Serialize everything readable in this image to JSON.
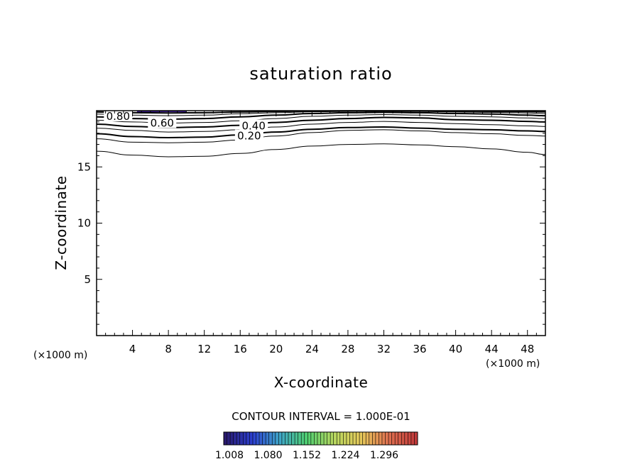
{
  "chart_data": {
    "type": "contour",
    "title": "saturation ratio",
    "xlabel": "X-coordinate",
    "ylabel": "Z-coordinate",
    "x_unit": "(×1000 m)",
    "x_unit_right": "(×1000 m)",
    "xlim": [
      0,
      50
    ],
    "ylim": [
      0,
      20
    ],
    "x_ticks": [
      4,
      8,
      12,
      16,
      20,
      24,
      28,
      32,
      36,
      40,
      44,
      48
    ],
    "y_ticks": [
      5,
      10,
      15
    ],
    "contour_interval_text": "CONTOUR INTERVAL = 1.000E-01",
    "contours": [
      {
        "level": 0.0,
        "label": "",
        "points": [
          [
            0,
            16.4
          ],
          [
            4,
            16.05
          ],
          [
            8,
            15.9
          ],
          [
            12,
            15.95
          ],
          [
            16,
            16.2
          ],
          [
            20,
            16.55
          ],
          [
            24,
            16.85
          ],
          [
            28,
            17.0
          ],
          [
            32,
            17.05
          ],
          [
            36,
            16.95
          ],
          [
            40,
            16.8
          ],
          [
            44,
            16.6
          ],
          [
            48,
            16.3
          ],
          [
            50,
            16.1
          ]
        ]
      },
      {
        "level": 0.1,
        "label": "",
        "points": [
          [
            0,
            17.5
          ],
          [
            4,
            17.2
          ],
          [
            8,
            17.15
          ],
          [
            12,
            17.2
          ],
          [
            16,
            17.4
          ],
          [
            20,
            17.75
          ],
          [
            24,
            18.05
          ],
          [
            28,
            18.25
          ],
          [
            32,
            18.3
          ],
          [
            36,
            18.2
          ],
          [
            40,
            18.05
          ],
          [
            44,
            17.95
          ],
          [
            48,
            17.8
          ],
          [
            50,
            17.75
          ]
        ]
      },
      {
        "level": 0.2,
        "label": "0.20",
        "label_at": [
          17,
          17.75
        ],
        "points": [
          [
            0,
            17.95
          ],
          [
            4,
            17.7
          ],
          [
            8,
            17.6
          ],
          [
            12,
            17.65
          ],
          [
            16,
            17.85
          ],
          [
            20,
            18.1
          ],
          [
            24,
            18.35
          ],
          [
            28,
            18.5
          ],
          [
            32,
            18.55
          ],
          [
            36,
            18.45
          ],
          [
            40,
            18.35
          ],
          [
            44,
            18.3
          ],
          [
            48,
            18.2
          ],
          [
            50,
            18.15
          ]
        ]
      },
      {
        "level": 0.3,
        "label": "",
        "points": [
          [
            0,
            18.45
          ],
          [
            4,
            18.25
          ],
          [
            8,
            18.1
          ],
          [
            12,
            18.15
          ],
          [
            16,
            18.3
          ],
          [
            20,
            18.55
          ],
          [
            24,
            18.8
          ],
          [
            28,
            18.95
          ],
          [
            32,
            19.05
          ],
          [
            36,
            18.95
          ],
          [
            40,
            18.85
          ],
          [
            44,
            18.75
          ],
          [
            48,
            18.65
          ],
          [
            50,
            18.6
          ]
        ]
      },
      {
        "level": 0.4,
        "label": "0.40",
        "label_at": [
          17.5,
          18.65
        ],
        "points": [
          [
            0,
            18.8
          ],
          [
            4,
            18.6
          ],
          [
            8,
            18.5
          ],
          [
            12,
            18.55
          ],
          [
            16,
            18.7
          ],
          [
            20,
            18.95
          ],
          [
            24,
            19.15
          ],
          [
            28,
            19.3
          ],
          [
            32,
            19.4
          ],
          [
            36,
            19.35
          ],
          [
            40,
            19.2
          ],
          [
            44,
            19.15
          ],
          [
            48,
            19.05
          ],
          [
            50,
            19.0
          ]
        ]
      },
      {
        "level": 0.5,
        "label": "",
        "points": [
          [
            0,
            19.15
          ],
          [
            4,
            19.0
          ],
          [
            8,
            18.9
          ],
          [
            12,
            18.95
          ],
          [
            16,
            19.1
          ],
          [
            20,
            19.3
          ],
          [
            24,
            19.5
          ],
          [
            28,
            19.6
          ],
          [
            32,
            19.65
          ],
          [
            36,
            19.6
          ],
          [
            40,
            19.5
          ],
          [
            44,
            19.45
          ],
          [
            48,
            19.35
          ],
          [
            50,
            19.3
          ]
        ]
      },
      {
        "level": 0.6,
        "label": "0.60",
        "label_at": [
          7.3,
          18.9
        ],
        "points": [
          [
            0,
            19.45
          ],
          [
            4,
            19.3
          ],
          [
            8,
            19.25
          ],
          [
            12,
            19.3
          ],
          [
            16,
            19.45
          ],
          [
            20,
            19.6
          ],
          [
            24,
            19.75
          ],
          [
            28,
            19.82
          ],
          [
            32,
            19.85
          ],
          [
            36,
            19.82
          ],
          [
            40,
            19.75
          ],
          [
            44,
            19.7
          ],
          [
            48,
            19.6
          ],
          [
            50,
            19.55
          ]
        ]
      },
      {
        "level": 0.7,
        "label": "",
        "points": [
          [
            0,
            19.7
          ],
          [
            4,
            19.6
          ],
          [
            8,
            19.55
          ],
          [
            12,
            19.6
          ],
          [
            16,
            19.72
          ],
          [
            20,
            19.82
          ],
          [
            24,
            19.9
          ],
          [
            28,
            19.93
          ],
          [
            32,
            19.95
          ],
          [
            36,
            19.93
          ],
          [
            40,
            19.88
          ],
          [
            44,
            19.85
          ],
          [
            48,
            19.8
          ],
          [
            50,
            19.75
          ]
        ]
      },
      {
        "level": 0.8,
        "label": "0.80",
        "label_at": [
          2.4,
          19.5
        ],
        "points": [
          [
            0,
            19.88
          ],
          [
            4,
            19.82
          ],
          [
            8,
            19.8
          ],
          [
            12,
            19.82
          ],
          [
            16,
            19.88
          ],
          [
            20,
            19.93
          ],
          [
            24,
            19.97
          ],
          [
            28,
            19.98
          ],
          [
            32,
            19.99
          ],
          [
            36,
            19.98
          ],
          [
            40,
            19.96
          ],
          [
            44,
            19.94
          ],
          [
            48,
            19.92
          ],
          [
            50,
            19.9
          ]
        ]
      }
    ],
    "colorbar": {
      "colors": [
        "#2a1a6e",
        "#2c3fd0",
        "#3fa6c8",
        "#4fcf70",
        "#b8d860",
        "#e6c85a",
        "#e07050",
        "#c03a3a"
      ],
      "tick_labels": [
        "1.008",
        "1.080",
        "1.152",
        "1.224",
        "1.296"
      ]
    },
    "grid": false,
    "legend": "colorbar-bottom"
  }
}
